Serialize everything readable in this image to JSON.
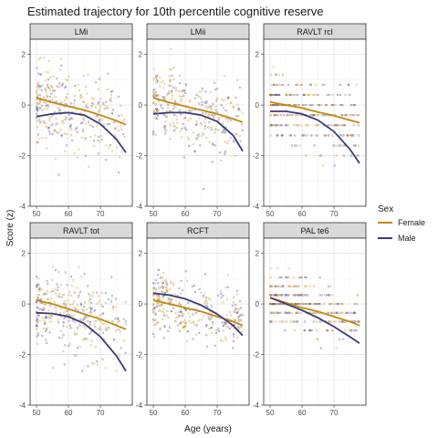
{
  "chart_data": {
    "type": "scatter",
    "title": "Estimated trajectory for 10th percentile cognitive reserve",
    "xlabel": "Age (years)",
    "ylabel": "Score (z)",
    "xlim": [
      48,
      80
    ],
    "ylim": [
      -4,
      2.6
    ],
    "x_ticks": [
      50,
      60,
      70
    ],
    "y_ticks": [
      -4,
      -2,
      0,
      2
    ],
    "grid": true,
    "legend": {
      "title": "Sex",
      "position": "right",
      "entries": [
        {
          "name": "Female",
          "color": "#c8860a"
        },
        {
          "name": "Male",
          "color": "#3d3a7e"
        }
      ]
    },
    "panels": [
      {
        "name": "LMi",
        "trajectory": {
          "x": [
            50,
            55,
            60,
            65,
            70,
            75,
            78
          ],
          "Female": [
            0.28,
            0.1,
            -0.05,
            -0.2,
            -0.4,
            -0.62,
            -0.78
          ],
          "Male": [
            -0.45,
            -0.35,
            -0.3,
            -0.4,
            -0.75,
            -1.35,
            -1.88
          ]
        },
        "scatter": {
          "center": 0.1,
          "spread": 1.3,
          "max": 2.2,
          "min": -3.8
        }
      },
      {
        "name": "LMii",
        "trajectory": {
          "x": [
            50,
            55,
            60,
            65,
            70,
            75,
            78
          ],
          "Female": [
            0.28,
            0.1,
            -0.05,
            -0.2,
            -0.35,
            -0.55,
            -0.68
          ],
          "Male": [
            -0.35,
            -0.3,
            -0.3,
            -0.4,
            -0.65,
            -1.2,
            -1.82
          ]
        },
        "scatter": {
          "center": 0.05,
          "spread": 1.2,
          "max": 2.2,
          "min": -3.5
        }
      },
      {
        "name": "RAVLT rcl",
        "trajectory": {
          "x": [
            50,
            55,
            60,
            65,
            70,
            75,
            78
          ],
          "Female": [
            0.12,
            0.0,
            -0.12,
            -0.28,
            -0.42,
            -0.6,
            -0.7
          ],
          "Male": [
            -0.25,
            -0.25,
            -0.35,
            -0.6,
            -1.05,
            -1.75,
            -2.3
          ]
        },
        "scatter": {
          "center": 0.0,
          "spread": 1.2,
          "max": 1.5,
          "min": -3.0,
          "quantized": 0.4
        }
      },
      {
        "name": "RAVLT tot",
        "trajectory": {
          "x": [
            50,
            55,
            60,
            65,
            70,
            75,
            78
          ],
          "Female": [
            0.15,
            0.0,
            -0.2,
            -0.4,
            -0.6,
            -0.85,
            -1.0
          ],
          "Male": [
            -0.35,
            -0.38,
            -0.5,
            -0.78,
            -1.3,
            -2.05,
            -2.65
          ]
        },
        "scatter": {
          "center": -0.1,
          "spread": 1.2,
          "max": 2.0,
          "min": -3.5
        }
      },
      {
        "name": "RCFT",
        "trajectory": {
          "x": [
            50,
            55,
            60,
            65,
            70,
            75,
            78
          ],
          "Female": [
            0.15,
            0.0,
            -0.15,
            -0.3,
            -0.5,
            -0.7,
            -0.85
          ],
          "Male": [
            0.42,
            0.35,
            0.2,
            -0.05,
            -0.4,
            -0.85,
            -1.25
          ]
        },
        "scatter": {
          "center": 0.1,
          "spread": 1.0,
          "max": 1.4,
          "min": -3.3,
          "cap": 1.35
        }
      },
      {
        "name": "PAL te6",
        "trajectory": {
          "x": [
            50,
            55,
            60,
            65,
            70,
            75,
            78
          ],
          "Female": [
            0.25,
            0.05,
            -0.15,
            -0.3,
            -0.5,
            -0.7,
            -0.85
          ],
          "Male": [
            0.25,
            0.0,
            -0.25,
            -0.55,
            -0.9,
            -1.3,
            -1.55
          ]
        },
        "scatter": {
          "center": 0.3,
          "spread": 0.9,
          "max": 1.5,
          "min": -3.0,
          "quantized": 0.35
        }
      }
    ]
  }
}
